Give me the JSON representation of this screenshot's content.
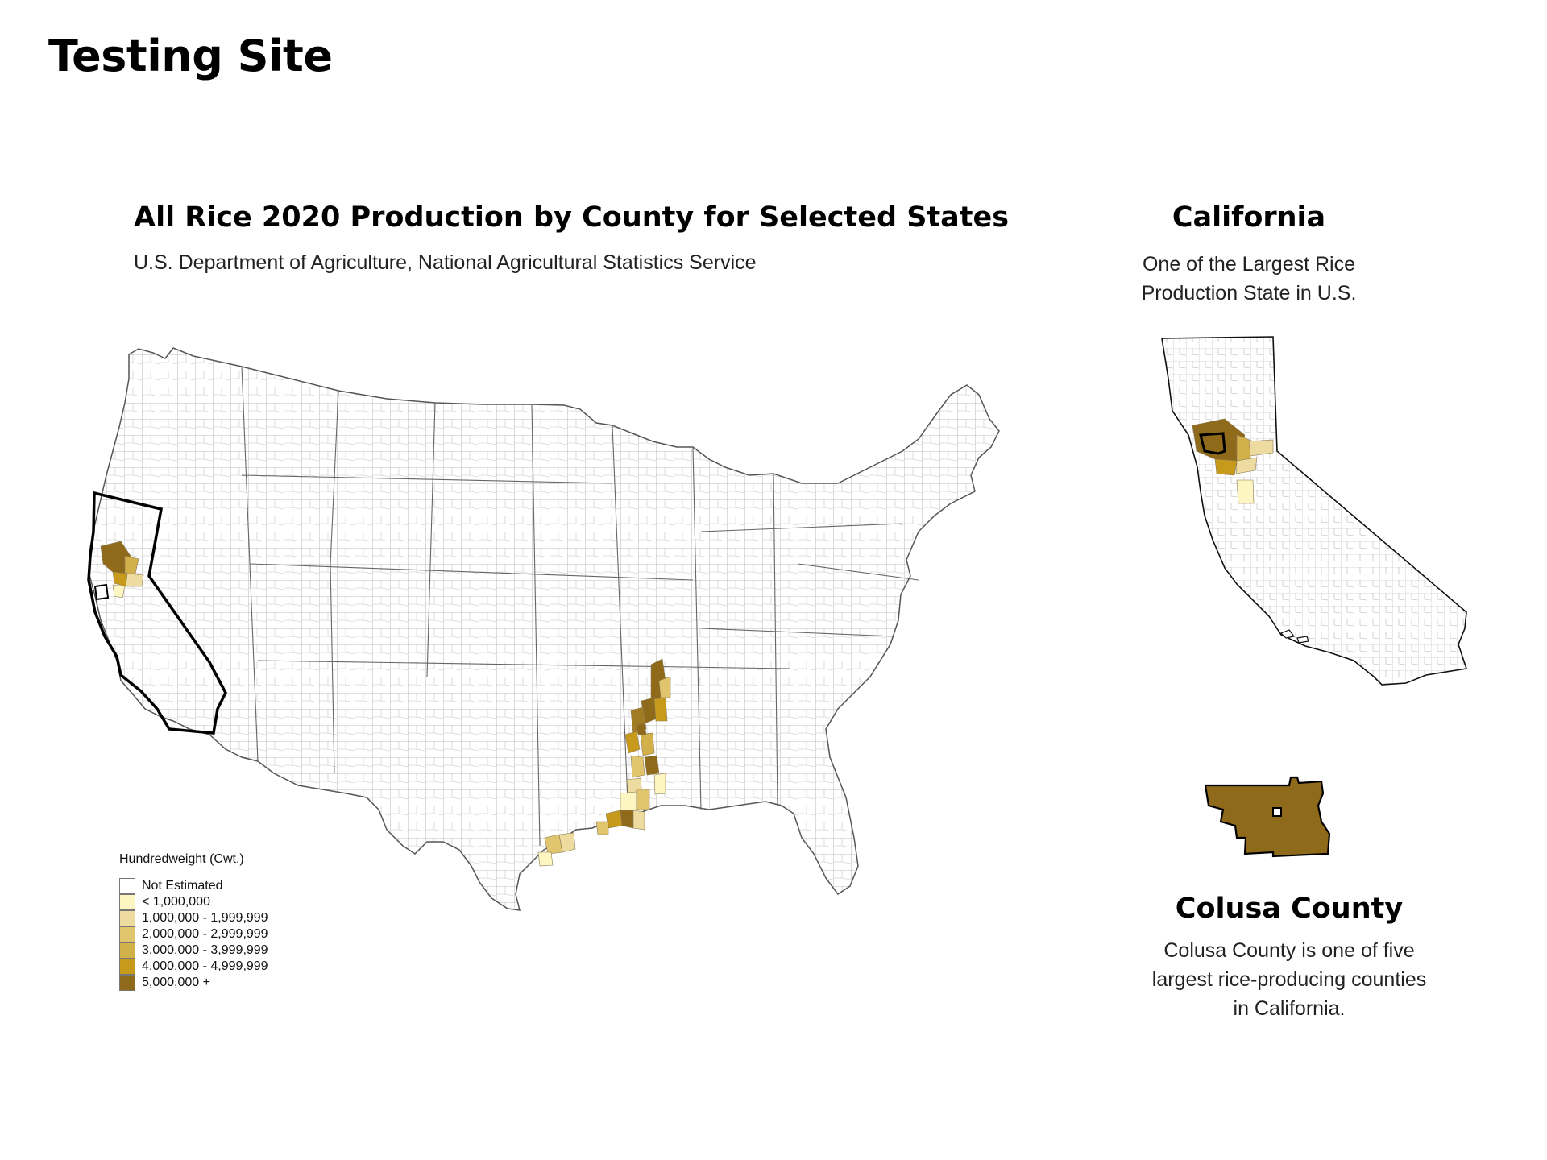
{
  "page": {
    "title": "Testing Site"
  },
  "main_map": {
    "title": "All Rice 2020 Production by County for Selected States",
    "subtitle": "U.S. Department of Agriculture, National Agricultural Statistics Service"
  },
  "inset_state": {
    "title": "California",
    "description_line1": "One of the Largest Rice",
    "description_line2": "Production State in U.S."
  },
  "inset_county": {
    "title": "Colusa County",
    "description_line1": "Colusa County is one of five",
    "description_line2": "largest rice-producing counties",
    "description_line3": "in California."
  },
  "legend": {
    "title": "Hundredweight (Cwt.)",
    "items": [
      {
        "label": "Not Estimated",
        "color": "#ffffff"
      },
      {
        "label": "< 1,000,000",
        "color": "#fdf6c3"
      },
      {
        "label": "1,000,000 - 1,999,999",
        "color": "#eedba0"
      },
      {
        "label": "2,000,000 - 2,999,999",
        "color": "#e0c56e"
      },
      {
        "label": "3,000,000 - 3,999,999",
        "color": "#d2b04a"
      },
      {
        "label": "4,000,000 - 4,999,999",
        "color": "#c89a1c"
      },
      {
        "label": "5,000,000 +",
        "color": "#8f6a1a"
      }
    ]
  },
  "colors": {
    "outline": "#000000",
    "county_border": "#9a9a9a",
    "top_class": "#8f6a1a"
  }
}
